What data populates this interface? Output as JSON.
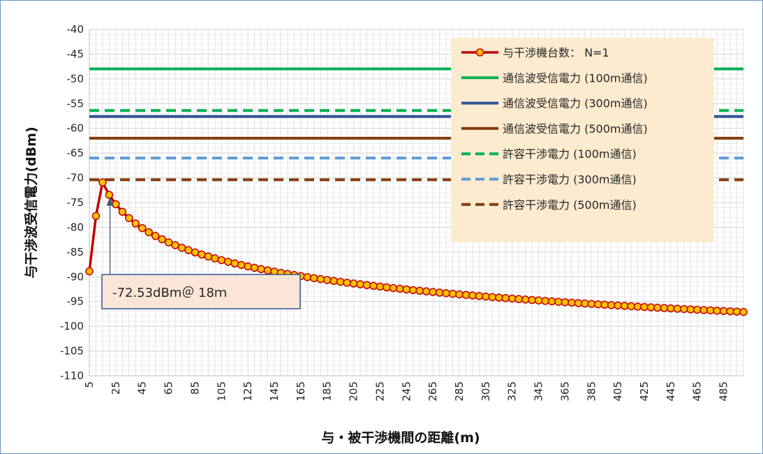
{
  "chart_data": {
    "type": "line",
    "title": "",
    "xlabel": "与・被干渉機間の距離(m)",
    "ylabel": "与干渉波受信電力(dBm)",
    "xlim": [
      5,
      500
    ],
    "ylim": [
      -110,
      -40
    ],
    "x_tick_labels": [
      "5",
      "25",
      "45",
      "65",
      "85",
      "105",
      "125",
      "145",
      "165",
      "185",
      "205",
      "225",
      "245",
      "265",
      "285",
      "305",
      "325",
      "345",
      "365",
      "385",
      "405",
      "425",
      "445",
      "465",
      "485"
    ],
    "y_tick_labels": [
      "-40",
      "-45",
      "-50",
      "-55",
      "-60",
      "-65",
      "-70",
      "-75",
      "-80",
      "-85",
      "-90",
      "-95",
      "-100",
      "-105",
      "-110"
    ],
    "grid": true,
    "legend_position": "top-right",
    "series": [
      {
        "name": "与干渉機台数： N=1",
        "style": "line-markers",
        "color": "#c00000",
        "marker_fill": "#ffc000",
        "model": {
          "peak_x": 18,
          "peak_y": -72.53,
          "start": [
            5,
            -88.9
          ],
          "second": [
            10,
            -77.7
          ],
          "end": [
            500,
            -97.1
          ]
        }
      },
      {
        "name": "通信波受信電力 (100m通信)",
        "style": "solid",
        "color": "#00b050",
        "value": -48
      },
      {
        "name": "通信波受信電力 (300m通信)",
        "style": "solid",
        "color": "#2f5597",
        "value": -57.6
      },
      {
        "name": "通信波受信電力 (500m通信)",
        "style": "solid",
        "color": "#843c0c",
        "value": -62
      },
      {
        "name": "許容干渉電力 (100m通信)",
        "style": "dashed",
        "color": "#00b050",
        "value": -56.4
      },
      {
        "name": "許容干渉電力 (300m通信)",
        "style": "dashed",
        "color": "#5b9bd5",
        "value": -66
      },
      {
        "name": "許容干渉電力 (500m通信)",
        "style": "dashed",
        "color": "#843c0c",
        "value": -70.4
      }
    ],
    "annotations": [
      {
        "text": "-72.53dBm＠ 18ｍ",
        "points_to": {
          "x": 18,
          "y": -72.53
        }
      }
    ]
  }
}
